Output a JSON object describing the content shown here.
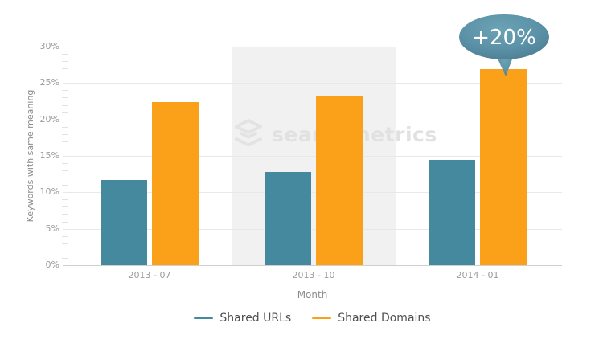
{
  "watermark": {
    "text": "searchmetrics",
    "logo_icon": "layers-icon",
    "color": "#e1e1e1"
  },
  "callout": {
    "text": "+20%",
    "fill": "#5b92a7",
    "fill_light": "#6ba2b5",
    "fill_dark": "#49798e",
    "text_color": "#ffffff"
  },
  "chart_data": {
    "type": "bar",
    "categories": [
      "2013 - 07",
      "2013 - 10",
      "2014 - 01"
    ],
    "series": [
      {
        "name": "Shared URLs",
        "color": "#45899f",
        "values": [
          11.7,
          12.8,
          14.5
        ]
      },
      {
        "name": "Shared Domains",
        "color": "#faa019",
        "values": [
          22.4,
          23.3,
          26.9
        ]
      }
    ],
    "title": "",
    "xlabel": "Month",
    "ylabel": "Keywords with same meaning",
    "ylim": [
      0,
      30
    ],
    "ytick_step": 5,
    "yticks": [
      "0%",
      "5%",
      "10%",
      "15%",
      "20%",
      "25%",
      "30%"
    ],
    "grid": true,
    "minor_ticks_per_major": 4,
    "legend_position": "bottom",
    "highlighted_category_index": 1,
    "highlight_color": "#f1f1f1",
    "annotation": {
      "text": "+20%",
      "target_category": "2014 - 01",
      "target_series": "Shared Domains"
    }
  }
}
